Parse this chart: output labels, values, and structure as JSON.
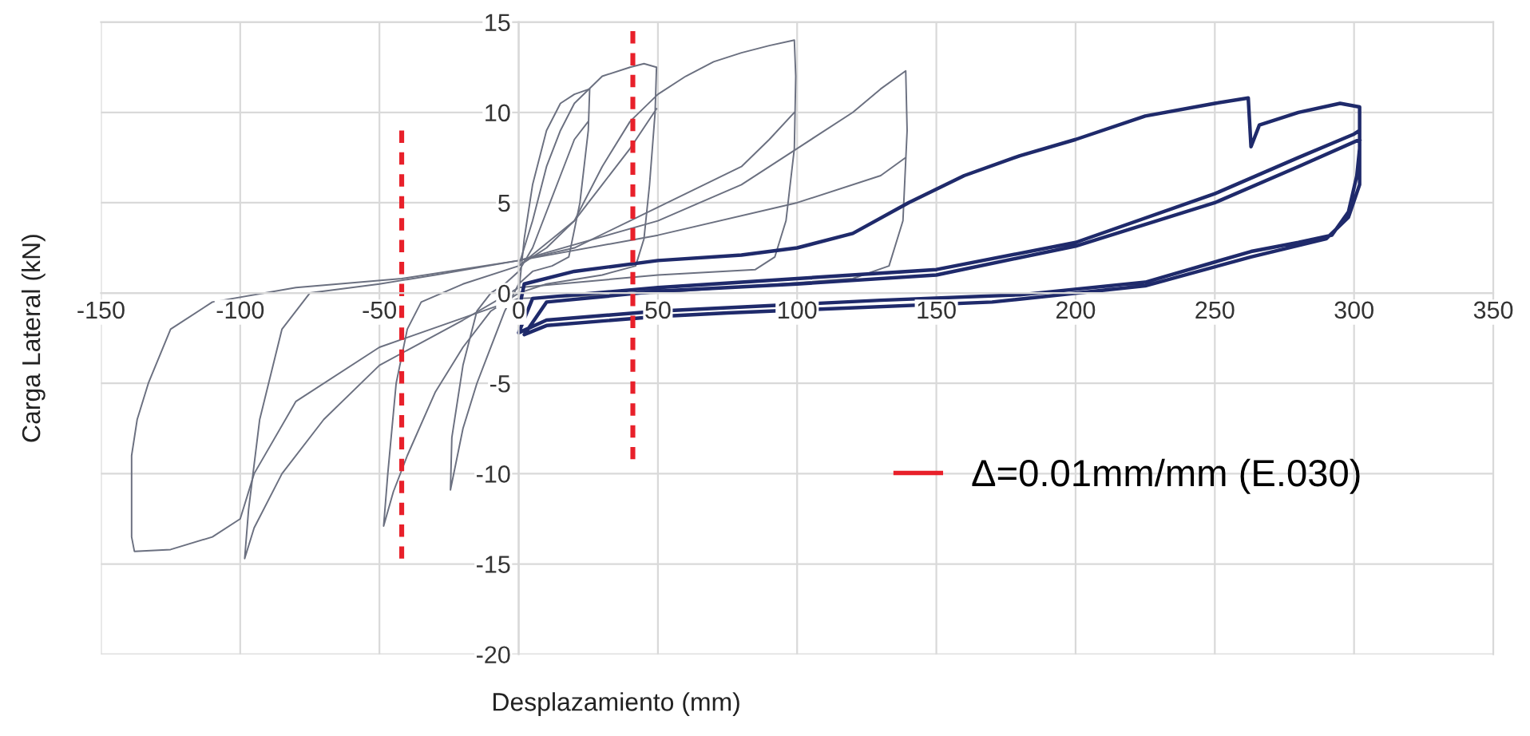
{
  "chart_data": {
    "type": "line",
    "xlabel": "Desplazamiento (mm)",
    "ylabel": "Carga Lateral (kN)",
    "xlim": [
      -150,
      350
    ],
    "xticks": [
      -150,
      -100,
      -50,
      0,
      50,
      100,
      150,
      200,
      250,
      300,
      350
    ],
    "ylim": [
      -20,
      15
    ],
    "yticks": [
      -20,
      -15,
      -10,
      -5,
      0,
      5,
      10,
      15
    ],
    "grid": true,
    "legend": "lower right",
    "marker": "none",
    "series": [
      {
        "color": "#6b7080",
        "x": [
          0,
          2,
          5,
          10,
          15,
          20,
          25.5,
          25,
          22,
          18,
          12,
          5,
          0,
          -5,
          -10,
          -15,
          -20,
          -24.5,
          -24,
          -20,
          -15,
          -10,
          -5,
          0,
          5,
          10,
          15,
          20,
          25
        ],
        "values": [
          0,
          3,
          6,
          9,
          10.5,
          11,
          11.3,
          9,
          5,
          2,
          1.5,
          1.2,
          0.5,
          -1,
          -3,
          -5,
          -7.5,
          -10.9,
          -8,
          -4,
          -1,
          0,
          0.5,
          1.2,
          2.5,
          4.5,
          6.5,
          8.5,
          9.5
        ]
      },
      {
        "color": "#6b7080",
        "x": [
          0,
          5,
          10,
          15,
          20,
          30,
          40,
          45,
          49.5,
          49,
          47,
          45,
          42,
          30,
          10,
          0,
          -10,
          -20,
          -30,
          -40,
          -45,
          -48.5,
          -47,
          -44,
          -40,
          -35,
          -20,
          0,
          10,
          20,
          30,
          40,
          49.5
        ],
        "values": [
          1.5,
          4,
          7,
          9,
          10.5,
          12,
          12.5,
          12.7,
          12.5,
          10,
          6,
          3,
          1.5,
          1,
          0.5,
          0,
          -1,
          -3,
          -5.5,
          -9,
          -11,
          -12.9,
          -10,
          -5,
          -2,
          -0.5,
          0.5,
          1.5,
          2.5,
          4,
          6,
          8,
          10.2
        ]
      },
      {
        "color": "#6b7080",
        "x": [
          0,
          20,
          30,
          40,
          50,
          60,
          70,
          80,
          90,
          99,
          99.5,
          99,
          96,
          92,
          85,
          50,
          0,
          -20,
          -50,
          -70,
          -85,
          -95,
          -98.4,
          -97,
          -93,
          -85,
          -75,
          -50,
          -30,
          0,
          20,
          40,
          60,
          80,
          90,
          99
        ],
        "values": [
          1.5,
          4,
          7,
          9.5,
          11,
          12,
          12.8,
          13.3,
          13.7,
          14,
          12,
          8,
          4,
          2,
          1.3,
          1,
          0.3,
          -1.5,
          -4,
          -7,
          -10,
          -13,
          -14.7,
          -12,
          -7,
          -2,
          0,
          0.5,
          1,
          1.8,
          2.5,
          4,
          5.5,
          7,
          8.5,
          10
        ]
      },
      {
        "color": "#6b7080",
        "x": [
          0,
          50,
          80,
          100,
          120,
          130,
          139,
          139.5,
          138,
          133,
          120,
          50,
          0,
          -50,
          -80,
          -95,
          -100,
          -110,
          -125,
          -138,
          -139,
          -139,
          -137,
          -133,
          -125,
          -110,
          -80,
          -42,
          0,
          50,
          100,
          130,
          139
        ],
        "values": [
          1.8,
          4,
          6,
          8,
          10,
          11.3,
          12.3,
          9,
          4,
          1.5,
          0.8,
          0,
          -0.3,
          -3,
          -6,
          -10,
          -12.5,
          -13.5,
          -14.2,
          -14.3,
          -13.5,
          -9,
          -7,
          -5,
          -2,
          -0.5,
          0.3,
          0.8,
          1.8,
          3.2,
          5,
          6.5,
          7.5
        ]
      },
      {
        "color": "#1f2a6b",
        "x": [
          0,
          2,
          20,
          50,
          80,
          100,
          120,
          140,
          160,
          180,
          200,
          225,
          250,
          262,
          263,
          266,
          280,
          295,
          302,
          302,
          301,
          298,
          292,
          280,
          263,
          225,
          180,
          130,
          50,
          10,
          0,
          5,
          50,
          100,
          150,
          200,
          250,
          280,
          300,
          302,
          302,
          298,
          290,
          263,
          225,
          170,
          75,
          50,
          10,
          2,
          10,
          50,
          100,
          150,
          200,
          250,
          280,
          302
        ],
        "values": [
          -1,
          0.5,
          1.2,
          1.8,
          2.1,
          2.5,
          3.3,
          5,
          6.5,
          7.6,
          8.5,
          9.8,
          10.5,
          10.8,
          8.1,
          9.3,
          10,
          10.5,
          10.3,
          8,
          6.5,
          4.5,
          3.2,
          2.8,
          2.3,
          0.6,
          -0.1,
          -0.4,
          -1,
          -1.5,
          -2.2,
          -0.3,
          0.3,
          0.8,
          1.3,
          2.8,
          5.5,
          7.5,
          8.8,
          9,
          6,
          4.2,
          3,
          2,
          0.4,
          -0.5,
          -1.1,
          -1.3,
          -1.8,
          -2.3,
          -0.5,
          0.1,
          0.5,
          1,
          2.6,
          5,
          7,
          8.5
        ]
      },
      {
        "name": "Δ=0.01mm/mm (E.030)",
        "color": "#e8202a",
        "line_style": "dashed",
        "x": [
          -42,
          -42
        ],
        "values": [
          9,
          -14.7
        ]
      },
      {
        "color": "#e8202a",
        "line_style": "dashed",
        "x": [
          41,
          41
        ],
        "values": [
          14.5,
          -9.2
        ]
      }
    ]
  }
}
